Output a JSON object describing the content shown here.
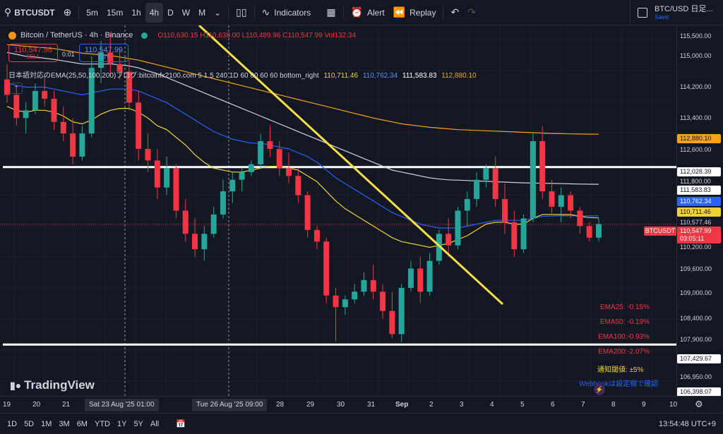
{
  "toolbar": {
    "symbol": "BTCUSDT",
    "intervals": [
      "5m",
      "15m",
      "1h",
      "4h",
      "D",
      "W",
      "M"
    ],
    "active_interval": "4h",
    "indicators_label": "Indicators",
    "alert_label": "Alert",
    "replay_label": "Replay"
  },
  "watch": {
    "title": "BTC/USD 日足...",
    "save": "Save"
  },
  "legend": {
    "name": "Bitcoin / TetherUS · 4h · Binance",
    "o": "O110,630.15",
    "h": "H110,638.00",
    "l": "L110,489.96",
    "c": "C110,547.99",
    "vol": "Vol132.34"
  },
  "trade": {
    "sell_price": "110,547.98",
    "sell_label": "SELL",
    "spread": "0.01",
    "buy_price": "110,547.99",
    "buy_label": "BUY"
  },
  "ema_legend": {
    "text": "日本語対応のEMA(25,50,100,200)ブログ:bitcoinfx2100.com 5 1 5 240 1D 60 60 60 60 bottom_right",
    "v25": "110,711.46",
    "v50": "110,762.34",
    "v100": "111,583.83",
    "v200": "112,880.10"
  },
  "colors": {
    "ema25": "#f0d13c",
    "ema50": "#2962ff",
    "ema100": "#d1d4dc",
    "ema200": "#f7a21b",
    "up": "#26a69a",
    "down": "#f23645",
    "trendline": "#f5e04a"
  },
  "stats": [
    "EMA25: -0.15%",
    "EMA50: -0.19%",
    "EMA100:-0.93%",
    "EMA200:-2.07%"
  ],
  "notify": "通知閾値: ±5%",
  "webhook": "Webhookは設定欄で確認",
  "price_axis": {
    "ticks": [
      "115,500.00",
      "115,000.00",
      "114,200.00",
      "113,400.00",
      "112,600.00",
      "111,800.00",
      "110,200.00",
      "109,600.00",
      "109,000.00",
      "108,400.00",
      "107,900.00",
      "106,950.00"
    ],
    "tags": {
      "ema200": "112,880.10",
      "line_top": "112,028.39",
      "ema100": "111,583.83",
      "ema50": "110,762.34",
      "ema25": "110,711.46",
      "other": "110,577.46",
      "last": "110,547.99",
      "countdown": "03:05:11",
      "line_bottom": "107,429.67",
      "low": "106,398.07"
    },
    "btc_tag": "BTCUSDT"
  },
  "time_axis": {
    "labels": [
      "19",
      "20",
      "21",
      "27",
      "28",
      "29",
      "30",
      "31",
      "Sep",
      "2",
      "3",
      "4",
      "5",
      "6",
      "7",
      "8",
      "9",
      "10"
    ],
    "cursor1": "Sat 23 Aug '25   01:00",
    "cursor2": "Tue 26 Aug '25   09:00"
  },
  "bottom": {
    "ranges": [
      "1D",
      "5D",
      "1M",
      "3M",
      "6M",
      "YTD",
      "1Y",
      "5Y",
      "All"
    ],
    "clock": "13:54:48 UTC+9"
  },
  "logo": "TradingView",
  "chart_data": {
    "type": "candlestick",
    "ylim": [
      106100,
      115700
    ],
    "candles": [
      [
        114300,
        114700,
        113700,
        113900
      ],
      [
        113900,
        114100,
        113100,
        113300
      ],
      [
        113300,
        113700,
        112900,
        113500
      ],
      [
        113500,
        114200,
        113400,
        114000
      ],
      [
        114000,
        114400,
        113600,
        113800
      ],
      [
        113800,
        114000,
        113000,
        113200
      ],
      [
        113200,
        113600,
        112700,
        112900
      ],
      [
        112900,
        113300,
        112100,
        112300
      ],
      [
        112300,
        113100,
        112200,
        112900
      ],
      [
        112900,
        114900,
        112800,
        114600
      ],
      [
        114600,
        115300,
        114200,
        115000
      ],
      [
        115000,
        115500,
        114400,
        114700
      ],
      [
        114700,
        115100,
        114300,
        114500
      ],
      [
        114500,
        114800,
        113500,
        113700
      ],
      [
        113700,
        114000,
        112200,
        112500
      ],
      [
        112500,
        112900,
        111900,
        112200
      ],
      [
        112200,
        112500,
        111200,
        111500
      ],
      [
        111500,
        112300,
        111300,
        112000
      ],
      [
        112000,
        112100,
        110700,
        110900
      ],
      [
        110900,
        111200,
        110100,
        110300
      ],
      [
        110300,
        110700,
        109700,
        109900
      ],
      [
        109900,
        110500,
        109600,
        110300
      ],
      [
        110300,
        111000,
        110200,
        110800
      ],
      [
        110800,
        111700,
        110700,
        111400
      ],
      [
        111400,
        111900,
        111100,
        111700
      ],
      [
        111700,
        112000,
        111400,
        111900
      ],
      [
        111900,
        112200,
        111800,
        112100
      ],
      [
        112100,
        112900,
        112000,
        112700
      ],
      [
        112700,
        113100,
        112300,
        112500
      ],
      [
        112500,
        112700,
        111800,
        112000
      ],
      [
        112000,
        112400,
        111600,
        111800
      ],
      [
        111800,
        112000,
        111100,
        111300
      ],
      [
        111300,
        111400,
        110200,
        110400
      ],
      [
        110400,
        110500,
        109900,
        110100
      ],
      [
        110100,
        110200,
        108500,
        108700
      ],
      [
        108700,
        108900,
        107500,
        108400
      ],
      [
        108400,
        108700,
        108200,
        108600
      ],
      [
        108600,
        109000,
        108500,
        108800
      ],
      [
        108800,
        109300,
        108700,
        109100
      ],
      [
        109100,
        109500,
        108600,
        108800
      ],
      [
        108800,
        109000,
        108100,
        108300
      ],
      [
        108300,
        108800,
        107600,
        107700
      ],
      [
        107700,
        109000,
        107500,
        108900
      ],
      [
        108900,
        109600,
        108800,
        109400
      ],
      [
        109400,
        109700,
        108500,
        108800
      ],
      [
        108800,
        109800,
        108700,
        109600
      ],
      [
        109600,
        110400,
        109500,
        110300
      ],
      [
        110300,
        110700,
        109700,
        110000
      ],
      [
        110000,
        111000,
        109900,
        110900
      ],
      [
        110900,
        111400,
        110500,
        111200
      ],
      [
        111200,
        111900,
        111000,
        111700
      ],
      [
        111700,
        112100,
        111500,
        112000
      ],
      [
        112000,
        112300,
        111000,
        111200
      ],
      [
        111200,
        111600,
        110300,
        110600
      ],
      [
        110600,
        110900,
        109700,
        109900
      ],
      [
        109900,
        110800,
        109800,
        110700
      ],
      [
        110700,
        112900,
        110600,
        112700
      ],
      [
        112700,
        113100,
        111200,
        111400
      ],
      [
        111400,
        111700,
        110800,
        111000
      ],
      [
        111000,
        111500,
        110600,
        111300
      ],
      [
        111300,
        111400,
        110700,
        110900
      ],
      [
        110900,
        111000,
        110300,
        110500
      ],
      [
        110500,
        110600,
        110100,
        110200
      ],
      [
        110200,
        110700,
        110100,
        110550
      ]
    ],
    "ema25": [
      113600,
      113500,
      113450,
      113500,
      113500,
      113450,
      113350,
      113200,
      113150,
      113250,
      113400,
      113500,
      113550,
      113550,
      113450,
      113300,
      113100,
      113000,
      112800,
      112600,
      112350,
      112150,
      112000,
      111950,
      111900,
      111900,
      111950,
      112000,
      112050,
      112050,
      112000,
      111950,
      111800,
      111650,
      111400,
      111150,
      110950,
      110800,
      110650,
      110500,
      110350,
      110200,
      110100,
      110050,
      110000,
      109950,
      110000,
      110050,
      110150,
      110250,
      110400,
      110550,
      110600,
      110600,
      110550,
      110550,
      110700,
      110800,
      110800,
      110800,
      110800,
      110750,
      110720,
      110711
    ],
    "ema50": [
      114200,
      114150,
      114100,
      114100,
      114100,
      114050,
      114000,
      113950,
      113900,
      113950,
      114000,
      114050,
      114050,
      114050,
      114000,
      113900,
      113800,
      113700,
      113550,
      113400,
      113250,
      113100,
      112950,
      112850,
      112750,
      112700,
      112650,
      112650,
      112600,
      112550,
      112500,
      112400,
      112300,
      112150,
      111950,
      111750,
      111600,
      111450,
      111300,
      111150,
      111000,
      110850,
      110750,
      110650,
      110550,
      110500,
      110450,
      110450,
      110450,
      110500,
      110550,
      110600,
      110650,
      110650,
      110650,
      110650,
      110700,
      110750,
      110760,
      110770,
      110770,
      110765,
      110763,
      110762
    ],
    "ema100": [
      115000,
      114950,
      114900,
      114880,
      114850,
      114820,
      114780,
      114740,
      114700,
      114700,
      114700,
      114700,
      114680,
      114650,
      114600,
      114520,
      114450,
      114350,
      114250,
      114150,
      114050,
      113950,
      113850,
      113750,
      113650,
      113550,
      113450,
      113350,
      113250,
      113150,
      113050,
      112950,
      112850,
      112750,
      112650,
      112550,
      112450,
      112350,
      112250,
      112150,
      112050,
      111950,
      111900,
      111850,
      111800,
      111750,
      111720,
      111700,
      111690,
      111680,
      111670,
      111660,
      111650,
      111640,
      111630,
      111620,
      111615,
      111610,
      111605,
      111600,
      111595,
      111590,
      111586,
      111584
    ],
    "ema200": [
      115200,
      115180,
      115160,
      115140,
      115120,
      115100,
      115060,
      115020,
      114980,
      114960,
      114940,
      114920,
      114880,
      114840,
      114800,
      114740,
      114680,
      114620,
      114560,
      114500,
      114440,
      114380,
      114320,
      114260,
      114200,
      114140,
      114080,
      114020,
      113960,
      113900,
      113840,
      113780,
      113720,
      113660,
      113600,
      113540,
      113480,
      113420,
      113360,
      113300,
      113250,
      113200,
      113150,
      113120,
      113090,
      113060,
      113040,
      113020,
      113000,
      112990,
      112980,
      112970,
      112960,
      112950,
      112940,
      112930,
      112920,
      112910,
      112900,
      112895,
      112890,
      112886,
      112883,
      112880
    ]
  }
}
